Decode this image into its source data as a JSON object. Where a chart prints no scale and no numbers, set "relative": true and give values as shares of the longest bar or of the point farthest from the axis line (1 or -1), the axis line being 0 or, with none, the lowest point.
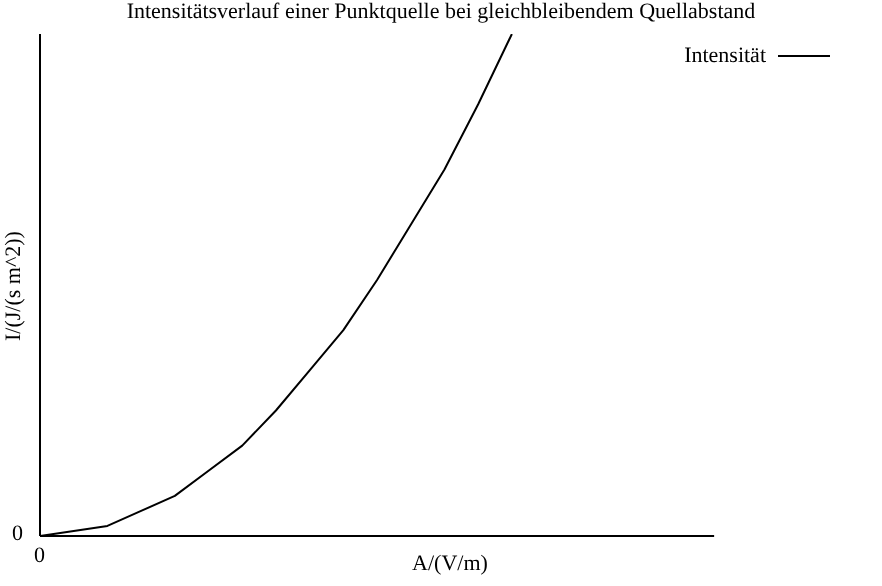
{
  "chart_data": {
    "type": "line",
    "title": "Intensitätsverlauf einer Punktquelle bei gleichbleibendem Quellabstand",
    "xlabel": "A/(V/m)",
    "ylabel": "I/(J/(s m^2))",
    "relative": true,
    "categories": [
      null,
      null,
      null,
      null,
      null,
      null,
      null,
      null,
      null,
      null,
      null,
      null,
      null,
      null,
      null,
      null,
      null,
      null,
      null,
      null,
      null
    ],
    "series": [
      {
        "name": "Intensität",
        "color": "#000000",
        "values": [
          0,
          0.01,
          0.02,
          0.05,
          0.08,
          0.13,
          0.18,
          0.25,
          0.33,
          0.41,
          0.51,
          0.62,
          0.73,
          0.86,
          1,
          null,
          null,
          null,
          null,
          null,
          null
        ]
      }
    ],
    "annotations": [
      "0",
      "0"
    ],
    "legend": "top right",
    "grid": false,
    "marker": "none",
    "line_style": "solid"
  }
}
